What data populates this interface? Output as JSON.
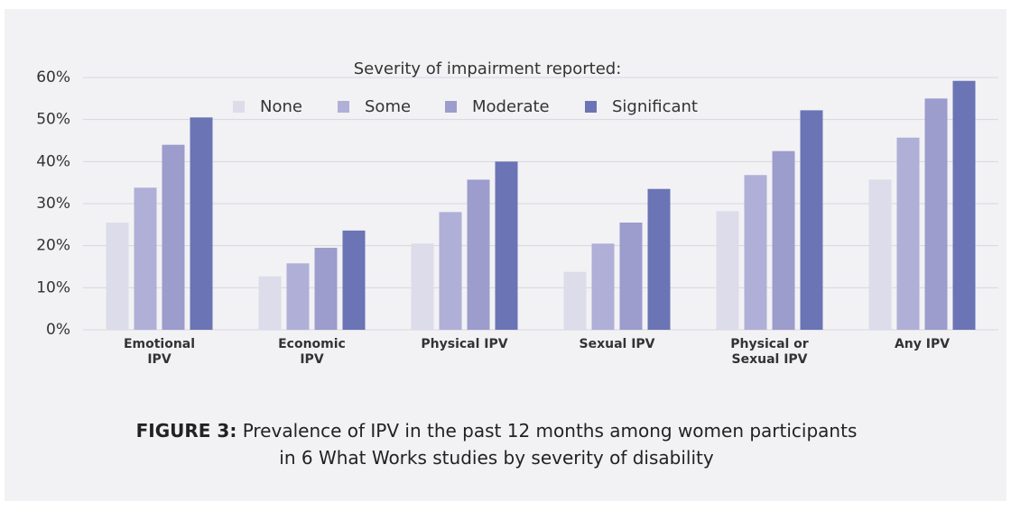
{
  "chart_data": {
    "type": "bar",
    "legend_title": "Severity of impairment reported:",
    "categories": [
      "Emotional\nIPV",
      "Economic\nIPV",
      "Physical IPV",
      "Sexual IPV",
      "Physical  or\nSexual IPV",
      "Any IPV"
    ],
    "series": [
      {
        "name": "None",
        "color": "#dcdcea",
        "values": [
          25.5,
          12.7,
          20.5,
          13.8,
          28.2,
          35.7
        ]
      },
      {
        "name": "Some",
        "color": "#afafd7",
        "values": [
          33.8,
          15.8,
          28,
          20.5,
          36.8,
          45.7
        ]
      },
      {
        "name": "Moderate",
        "color": "#9c9ccd",
        "values": [
          44,
          19.5,
          35.7,
          25.5,
          42.5,
          55
        ]
      },
      {
        "name": "Significant",
        "color": "#6b74b4",
        "values": [
          50.5,
          23.6,
          40,
          33.5,
          52.2,
          59.2
        ]
      }
    ],
    "ylim": [
      0,
      60
    ],
    "yticks": [
      {
        "value": 0,
        "label": "0%"
      },
      {
        "value": 10,
        "label": "10%"
      },
      {
        "value": 20,
        "label": "20%"
      },
      {
        "value": 30,
        "label": "30%"
      },
      {
        "value": 40,
        "label": "40%"
      },
      {
        "value": 50,
        "label": "50%"
      },
      {
        "value": 60,
        "label": "60%"
      }
    ],
    "grid": true,
    "caption_label": "FIGURE 3:",
    "caption": "Prevalence of IPV in the past 12 months among women participants\nin 6 What Works studies by severity of disability"
  }
}
